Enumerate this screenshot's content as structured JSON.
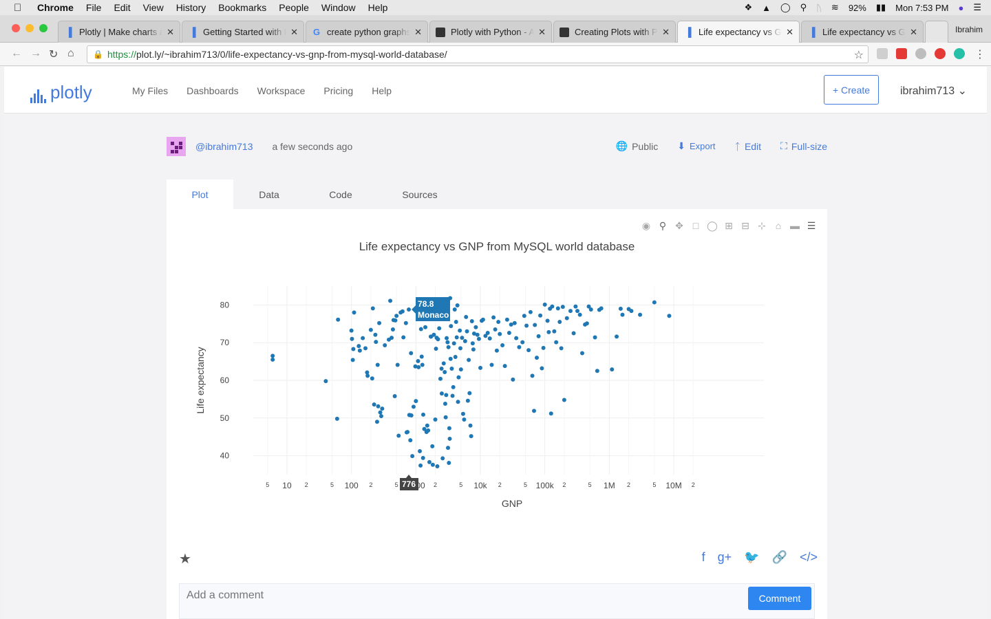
{
  "menubar": {
    "apple_icon": "apple-icon",
    "items": [
      "Chrome",
      "File",
      "Edit",
      "View",
      "History",
      "Bookmarks",
      "People",
      "Window",
      "Help"
    ],
    "battery": "92%",
    "clock": "Mon 7:53 PM"
  },
  "browser": {
    "tabs": [
      {
        "title": "Plotly | Make charts and",
        "icon": "plotly-icon"
      },
      {
        "title": "Getting Started with Plotly",
        "icon": "plotly-icon"
      },
      {
        "title": "create python graphs",
        "icon": "google-icon"
      },
      {
        "title": "Plotly with Python - A",
        "icon": "site-icon"
      },
      {
        "title": "Creating Plots with Py",
        "icon": "site-icon"
      },
      {
        "title": "Life expectancy vs GNP",
        "icon": "plotly-icon"
      },
      {
        "title": "Life expectancy vs GNP",
        "icon": "plotly-icon"
      }
    ],
    "profile": "Ibrahim",
    "url_scheme": "https://",
    "url_rest": "plot.ly/~ibrahim713/0/life-expectancy-vs-gnp-from-mysql-world-database/"
  },
  "header": {
    "logo_text": "plotly",
    "nav": [
      "My Files",
      "Dashboards",
      "Workspace",
      "Pricing",
      "Help"
    ],
    "create_label": "+ Create",
    "user_label": "ibrahim713"
  },
  "meta": {
    "username": "@ibrahim713",
    "time_ago": "a few seconds ago",
    "public_label": "Public",
    "export_label": "Export",
    "edit_label": "Edit",
    "fullsize_label": "Full-size"
  },
  "tabs": [
    "Plot",
    "Data",
    "Code",
    "Sources"
  ],
  "chart_data": {
    "type": "scatter",
    "title": "Life expectancy vs GNP from MySQL world database",
    "xlabel": "GNP",
    "ylabel": "Life expectancy",
    "x_scale": "log",
    "xlim": [
      3,
      250000000
    ],
    "ylim": [
      35,
      85
    ],
    "x_major_ticks": [
      {
        "v": 10,
        "label": "10"
      },
      {
        "v": 100,
        "label": "100"
      },
      {
        "v": 1000,
        "label": "1000"
      },
      {
        "v": 10000,
        "label": "10k"
      },
      {
        "v": 100000,
        "label": "100k"
      },
      {
        "v": 1000000,
        "label": "1M"
      },
      {
        "v": 10000000,
        "label": "10M"
      }
    ],
    "x_minor_ticks": [
      {
        "v": 5,
        "label": "5"
      },
      {
        "v": 20,
        "label": "2"
      },
      {
        "v": 50,
        "label": "5"
      },
      {
        "v": 200,
        "label": "2"
      },
      {
        "v": 500,
        "label": "5"
      },
      {
        "v": 2000,
        "label": "2"
      },
      {
        "v": 5000,
        "label": "5"
      },
      {
        "v": 20000,
        "label": "2"
      },
      {
        "v": 50000,
        "label": "5"
      },
      {
        "v": 200000,
        "label": "2"
      },
      {
        "v": 500000,
        "label": "5"
      },
      {
        "v": 2000000,
        "label": "2"
      },
      {
        "v": 5000000,
        "label": "5"
      },
      {
        "v": 20000000,
        "label": "2"
      }
    ],
    "y_ticks": [
      40,
      50,
      60,
      70,
      80
    ],
    "color": "#1f77b4",
    "hover": {
      "x": 776,
      "y": 78.8,
      "y_label": "78.8",
      "name": "Monaco",
      "x_label": "776"
    },
    "points": [
      [
        6,
        66.5
      ],
      [
        6,
        65.5
      ],
      [
        40,
        59.8
      ],
      [
        60,
        49.8
      ],
      [
        62,
        76.1
      ],
      [
        100,
        73.2
      ],
      [
        102,
        71
      ],
      [
        105,
        65.4
      ],
      [
        107,
        68.3
      ],
      [
        110,
        78
      ],
      [
        130,
        69.1
      ],
      [
        135,
        67.9
      ],
      [
        150,
        71.2
      ],
      [
        165,
        68.5
      ],
      [
        175,
        62.1
      ],
      [
        178,
        61.2
      ],
      [
        200,
        73.4
      ],
      [
        210,
        60.5
      ],
      [
        215,
        79.1
      ],
      [
        225,
        53.6
      ],
      [
        235,
        72.1
      ],
      [
        240,
        70.2
      ],
      [
        250,
        49
      ],
      [
        255,
        64.1
      ],
      [
        260,
        53.1
      ],
      [
        270,
        75.2
      ],
      [
        280,
        51.5
      ],
      [
        290,
        50.5
      ],
      [
        300,
        52.5
      ],
      [
        330,
        69.3
      ],
      [
        380,
        70.8
      ],
      [
        400,
        81.1
      ],
      [
        420,
        71.3
      ],
      [
        440,
        73.5
      ],
      [
        450,
        76
      ],
      [
        470,
        55.8
      ],
      [
        480,
        75.9
      ],
      [
        500,
        77.1
      ],
      [
        520,
        64.1
      ],
      [
        540,
        45.3
      ],
      [
        580,
        78
      ],
      [
        620,
        78.3
      ],
      [
        640,
        71.4
      ],
      [
        700,
        75.2
      ],
      [
        720,
        46.2
      ],
      [
        740,
        46.3
      ],
      [
        776,
        78.8
      ],
      [
        790,
        50.8
      ],
      [
        800,
        50.8
      ],
      [
        820,
        44.1
      ],
      [
        840,
        67.2
      ],
      [
        850,
        50.7
      ],
      [
        880,
        39.9
      ],
      [
        920,
        53
      ],
      [
        980,
        63.7
      ],
      [
        1000,
        54.5
      ],
      [
        1050,
        78.8
      ],
      [
        1080,
        65.1
      ],
      [
        1100,
        63.5
      ],
      [
        1150,
        41.2
      ],
      [
        1180,
        37.4
      ],
      [
        1200,
        73.6
      ],
      [
        1230,
        66.3
      ],
      [
        1260,
        64.1
      ],
      [
        1290,
        39.4
      ],
      [
        1300,
        50.9
      ],
      [
        1350,
        47.1
      ],
      [
        1400,
        74.1
      ],
      [
        1460,
        46.3
      ],
      [
        1500,
        48
      ],
      [
        1550,
        46.7
      ],
      [
        1580,
        76.7
      ],
      [
        1620,
        38.3
      ],
      [
        1700,
        71.6
      ],
      [
        1720,
        71.6
      ],
      [
        1800,
        42.5
      ],
      [
        1830,
        37.6
      ],
      [
        1900,
        72.1
      ],
      [
        1950,
        76.9
      ],
      [
        2000,
        49.6
      ],
      [
        2050,
        68.4
      ],
      [
        2100,
        71.3
      ],
      [
        2150,
        37.2
      ],
      [
        2200,
        70.9
      ],
      [
        2300,
        73.8
      ],
      [
        2400,
        60.4
      ],
      [
        2500,
        63.1
      ],
      [
        2520,
        56.5
      ],
      [
        2600,
        39.3
      ],
      [
        2700,
        64.5
      ],
      [
        2800,
        62.2
      ],
      [
        2850,
        53.8
      ],
      [
        2900,
        50.2
      ],
      [
        2950,
        56.1
      ],
      [
        3000,
        71.2
      ],
      [
        3100,
        70.1
      ],
      [
        3150,
        42.1
      ],
      [
        3200,
        68.8
      ],
      [
        3250,
        38.1
      ],
      [
        3300,
        47.3
      ],
      [
        3350,
        44.5
      ],
      [
        3400,
        81.8
      ],
      [
        3450,
        65.7
      ],
      [
        3500,
        74.4
      ],
      [
        3600,
        63.1
      ],
      [
        3700,
        55.9
      ],
      [
        3800,
        58.2
      ],
      [
        3900,
        69.8
      ],
      [
        4000,
        78.8
      ],
      [
        4100,
        66.2
      ],
      [
        4200,
        75.5
      ],
      [
        4300,
        71.4
      ],
      [
        4400,
        79.9
      ],
      [
        4500,
        54.3
      ],
      [
        4600,
        60.8
      ],
      [
        4800,
        73.2
      ],
      [
        4900,
        68.5
      ],
      [
        5000,
        62.9
      ],
      [
        5200,
        71.3
      ],
      [
        5400,
        51.1
      ],
      [
        5600,
        49.6
      ],
      [
        5800,
        70.4
      ],
      [
        6000,
        76.8
      ],
      [
        6200,
        73
      ],
      [
        6400,
        54.6
      ],
      [
        6600,
        65.4
      ],
      [
        6800,
        56.6
      ],
      [
        7000,
        48
      ],
      [
        7200,
        45.2
      ],
      [
        7400,
        75.7
      ],
      [
        7600,
        69.8
      ],
      [
        7800,
        68.2
      ],
      [
        8000,
        72.4
      ],
      [
        8500,
        74.1
      ],
      [
        9000,
        72.1
      ],
      [
        9500,
        71
      ],
      [
        10000,
        63.3
      ],
      [
        10500,
        75.8
      ],
      [
        11000,
        76.1
      ],
      [
        12000,
        71.8
      ],
      [
        13000,
        72.6
      ],
      [
        14000,
        71.1
      ],
      [
        15000,
        64.1
      ],
      [
        16000,
        76.7
      ],
      [
        17000,
        73.5
      ],
      [
        18000,
        67.9
      ],
      [
        19000,
        75.5
      ],
      [
        20000,
        72.3
      ],
      [
        22000,
        69.3
      ],
      [
        24000,
        63.8
      ],
      [
        26000,
        76.1
      ],
      [
        28000,
        72.6
      ],
      [
        30000,
        74.8
      ],
      [
        32000,
        60.2
      ],
      [
        34000,
        75.2
      ],
      [
        36000,
        71.2
      ],
      [
        40000,
        68.8
      ],
      [
        45000,
        70.1
      ],
      [
        48000,
        77.1
      ],
      [
        52000,
        74.5
      ],
      [
        56000,
        68
      ],
      [
        60000,
        78.1
      ],
      [
        64000,
        61.2
      ],
      [
        68000,
        51.9
      ],
      [
        70000,
        74.7
      ],
      [
        75000,
        66
      ],
      [
        80000,
        71.7
      ],
      [
        85000,
        77.2
      ],
      [
        90000,
        63.2
      ],
      [
        95000,
        68.6
      ],
      [
        100000,
        80.1
      ],
      [
        110000,
        75.8
      ],
      [
        115000,
        72.8
      ],
      [
        120000,
        79
      ],
      [
        125000,
        51.2
      ],
      [
        130000,
        79.6
      ],
      [
        140000,
        73
      ],
      [
        150000,
        70.1
      ],
      [
        160000,
        79.1
      ],
      [
        170000,
        75.5
      ],
      [
        180000,
        68.5
      ],
      [
        190000,
        79.5
      ],
      [
        200000,
        54.8
      ],
      [
        220000,
        76.5
      ],
      [
        250000,
        78.4
      ],
      [
        280000,
        72.5
      ],
      [
        300000,
        79.6
      ],
      [
        320000,
        78.4
      ],
      [
        350000,
        77.4
      ],
      [
        380000,
        67.2
      ],
      [
        420000,
        74.8
      ],
      [
        450000,
        75.1
      ],
      [
        480000,
        79.6
      ],
      [
        520000,
        78.8
      ],
      [
        600000,
        71.4
      ],
      [
        650000,
        62.5
      ],
      [
        700000,
        78.7
      ],
      [
        750000,
        79.1
      ],
      [
        1100000,
        62.9
      ],
      [
        1300000,
        71.6
      ],
      [
        1500000,
        79
      ],
      [
        1600000,
        77.4
      ],
      [
        2000000,
        78.9
      ],
      [
        2200000,
        78.4
      ],
      [
        3000000,
        77.4
      ],
      [
        5000000,
        80.7
      ],
      [
        8500000,
        77.1
      ]
    ]
  },
  "footer": {
    "comment_placeholder": "Add a comment",
    "comment_button": "Comment"
  }
}
